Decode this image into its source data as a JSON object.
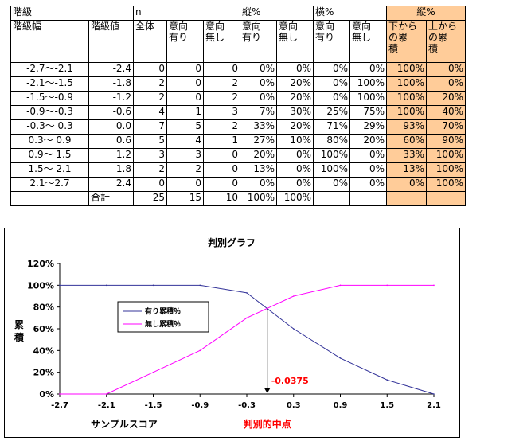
{
  "table": {
    "h1": {
      "kaikyu": "階級",
      "n": "n",
      "tate": "縦%",
      "yoko": "横%",
      "tate_orange": "縦%"
    },
    "h2": {
      "haba": "階級幅",
      "value": "階級値",
      "zentai": "全体",
      "ari": "意向\n有り",
      "nashi": "意向\n無し",
      "tate_ari": "意向\n有り",
      "tate_nashi": "意向\n無し",
      "yoko_ari": "意向\n有り",
      "yoko_nashi": "意向\n無し",
      "shita": "下から\nの累\n積",
      "ue": "上から\nの累\n積"
    },
    "rows": [
      {
        "haba": "-2.7～-2.1",
        "val": "-2.4",
        "zen": "0",
        "ari": "0",
        "nashi": "0",
        "ta": "0%",
        "tn": "0%",
        "ya": "0%",
        "yn": "0%",
        "sh": "100%",
        "ue": "0%"
      },
      {
        "haba": "-2.1～-1.5",
        "val": "-1.8",
        "zen": "2",
        "ari": "0",
        "nashi": "2",
        "ta": "0%",
        "tn": "20%",
        "ya": "0%",
        "yn": "100%",
        "sh": "100%",
        "ue": "0%"
      },
      {
        "haba": "-1.5～-0.9",
        "val": "-1.2",
        "zen": "2",
        "ari": "0",
        "nashi": "2",
        "ta": "0%",
        "tn": "20%",
        "ya": "0%",
        "yn": "100%",
        "sh": "100%",
        "ue": "20%"
      },
      {
        "haba": "-0.9～-0.3",
        "val": "-0.6",
        "zen": "4",
        "ari": "1",
        "nashi": "3",
        "ta": "7%",
        "tn": "30%",
        "ya": "25%",
        "yn": "75%",
        "sh": "100%",
        "ue": "40%"
      },
      {
        "haba": "-0.3～ 0.3",
        "val": "0.0",
        "zen": "7",
        "ari": "5",
        "nashi": "2",
        "ta": "33%",
        "tn": "20%",
        "ya": "71%",
        "yn": "29%",
        "sh": "93%",
        "ue": "70%"
      },
      {
        "haba": "0.3～ 0.9",
        "val": "0.6",
        "zen": "5",
        "ari": "4",
        "nashi": "1",
        "ta": "27%",
        "tn": "10%",
        "ya": "80%",
        "yn": "20%",
        "sh": "60%",
        "ue": "90%"
      },
      {
        "haba": "0.9～ 1.5",
        "val": "1.2",
        "zen": "3",
        "ari": "3",
        "nashi": "0",
        "ta": "20%",
        "tn": "0%",
        "ya": "100%",
        "yn": "0%",
        "sh": "33%",
        "ue": "100%"
      },
      {
        "haba": "1.5～ 2.1",
        "val": "1.8",
        "zen": "2",
        "ari": "2",
        "nashi": "0",
        "ta": "13%",
        "tn": "0%",
        "ya": "100%",
        "yn": "0%",
        "sh": "13%",
        "ue": "100%"
      },
      {
        "haba": "2.1～2.7",
        "val": "2.4",
        "zen": "0",
        "ari": "0",
        "nashi": "0",
        "ta": "0%",
        "tn": "0%",
        "ya": "0%",
        "yn": "0%",
        "sh": "0%",
        "ue": "100%"
      }
    ],
    "total": {
      "label": "合計",
      "zen": "25",
      "ari": "15",
      "nashi": "10",
      "ta": "100%",
      "tn": "100%"
    }
  },
  "chart_data": {
    "type": "line",
    "title": "判別グラフ",
    "xlabel": "サンプルスコア",
    "ylabel": "累\n積",
    "x": [
      -2.7,
      -2.1,
      -1.5,
      -0.9,
      -0.3,
      0.3,
      0.9,
      1.5,
      2.1
    ],
    "xticks": [
      "-2.7",
      "-2.1",
      "-1.5",
      "-0.9",
      "-0.3",
      "0.3",
      "0.9",
      "1.5",
      "2.1"
    ],
    "xlim": [
      -2.7,
      2.1
    ],
    "ylim": [
      0,
      120
    ],
    "yticks": [
      "0%",
      "20%",
      "40%",
      "60%",
      "80%",
      "100%",
      "120%"
    ],
    "series": [
      {
        "name": "有り累積％",
        "color": "#333399",
        "values": [
          100,
          100,
          100,
          100,
          93,
          60,
          33,
          13,
          0
        ]
      },
      {
        "name": "無し累積％",
        "color": "#ff00ff",
        "values": [
          0,
          0,
          20,
          40,
          70,
          90,
          100,
          100,
          100
        ]
      }
    ],
    "legend": "left",
    "annotation": {
      "value": "-0.0375",
      "x": -0.0375,
      "label": "判別的中点",
      "color": "#ff0000"
    }
  }
}
